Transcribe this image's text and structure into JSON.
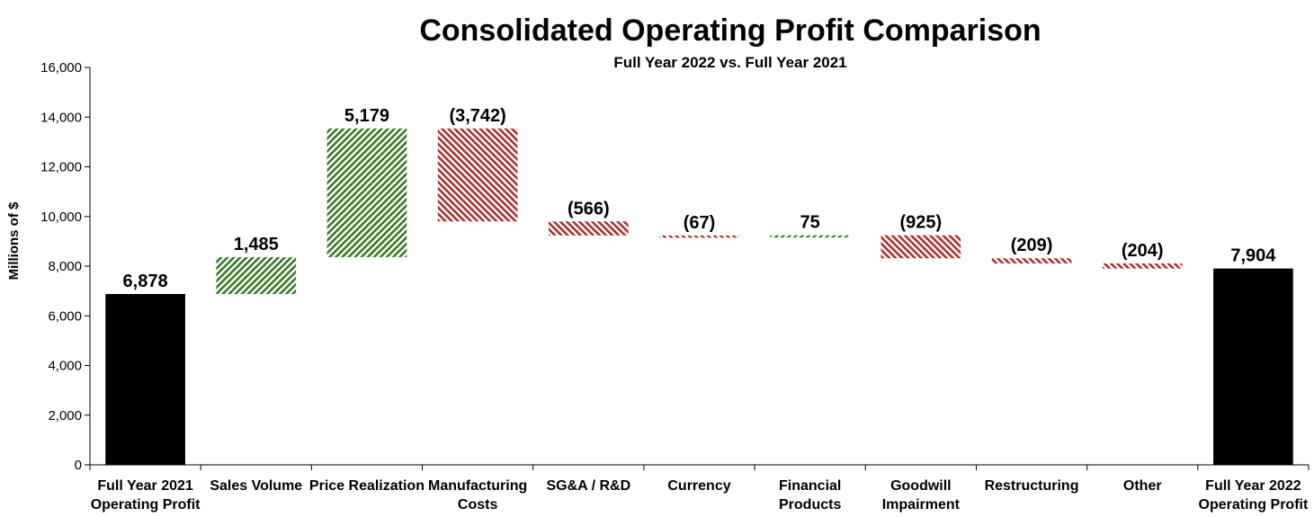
{
  "chart_data": {
    "type": "waterfall",
    "title": "Consolidated Operating Profit Comparison",
    "subtitle": "Full Year 2022 vs. Full Year 2021",
    "ylabel": "Millions of $",
    "ylim": [
      0,
      16000
    ],
    "yticks": [
      0,
      2000,
      4000,
      6000,
      8000,
      10000,
      12000,
      14000,
      16000
    ],
    "ytick_labels": [
      "0",
      "2,000",
      "4,000",
      "6,000",
      "8,000",
      "10,000",
      "12,000",
      "14,000",
      "16,000"
    ],
    "grid": false,
    "colors": {
      "total": "#000000",
      "increase": "#3a7a28",
      "decrease": "#a83232"
    },
    "bars": [
      {
        "label": [
          "Full Year 2021",
          "Operating Profit"
        ],
        "kind": "total",
        "value": 6878,
        "display": "6,878"
      },
      {
        "label": [
          "Sales Volume"
        ],
        "kind": "delta",
        "value": 1485,
        "display": "1,485"
      },
      {
        "label": [
          "Price Realization"
        ],
        "kind": "delta",
        "value": 5179,
        "display": "5,179"
      },
      {
        "label": [
          "Manufacturing",
          "Costs"
        ],
        "kind": "delta",
        "value": -3742,
        "display": "(3,742)"
      },
      {
        "label": [
          "SG&A / R&D"
        ],
        "kind": "delta",
        "value": -566,
        "display": "(566)"
      },
      {
        "label": [
          "Currency"
        ],
        "kind": "delta",
        "value": -67,
        "display": "(67)"
      },
      {
        "label": [
          "Financial",
          "Products"
        ],
        "kind": "delta",
        "value": 75,
        "display": "75"
      },
      {
        "label": [
          "Goodwill",
          "Impairment"
        ],
        "kind": "delta",
        "value": -925,
        "display": "(925)"
      },
      {
        "label": [
          "Restructuring"
        ],
        "kind": "delta",
        "value": -209,
        "display": "(209)"
      },
      {
        "label": [
          "Other"
        ],
        "kind": "delta",
        "value": -204,
        "display": "(204)"
      },
      {
        "label": [
          "Full Year 2022",
          "Operating Profit"
        ],
        "kind": "total",
        "value": 7904,
        "display": "7,904"
      }
    ]
  }
}
